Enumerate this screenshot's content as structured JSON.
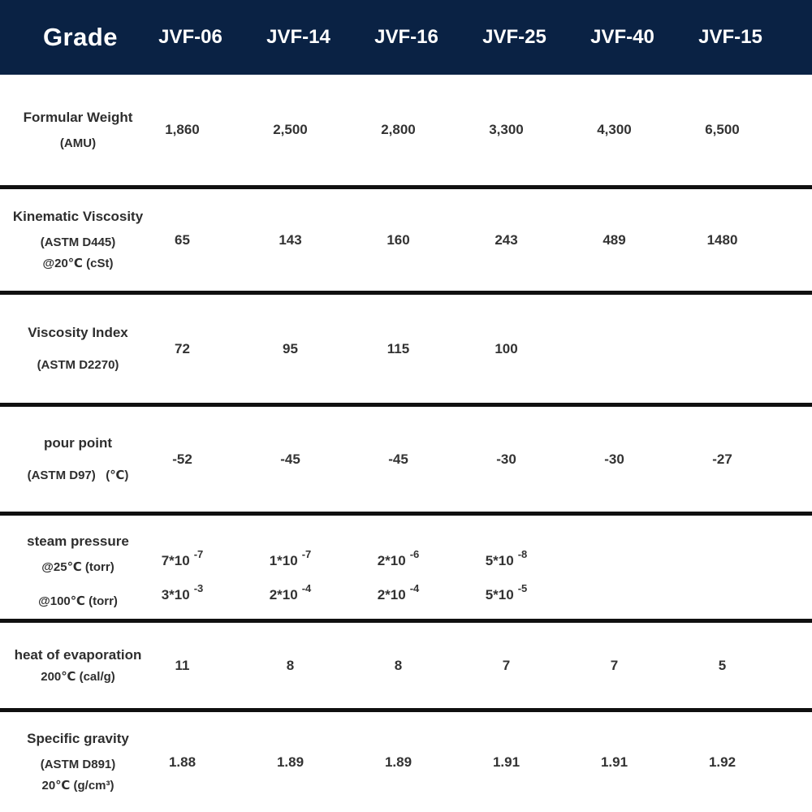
{
  "header": {
    "grade_label": "Grade",
    "columns": [
      "JVF-06",
      "JVF-14",
      "JVF-16",
      "JVF-25",
      "JVF-40",
      "JVF-15"
    ]
  },
  "colors": {
    "header_bg": "#0a2244",
    "header_text": "#ffffff",
    "divider": "#101010",
    "text": "#333333"
  },
  "rows": [
    {
      "label_lines": [
        "Formular Weight",
        "(AMU)"
      ],
      "values": [
        "1,860",
        "2,500",
        "2,800",
        "3,300",
        "4,300",
        "6,500"
      ]
    },
    {
      "label_lines": [
        "Kinematic Viscosity",
        "(ASTM D445)",
        "@20℃ (cSt)"
      ],
      "values": [
        "65",
        "143",
        "160",
        "243",
        "489",
        "1480"
      ]
    },
    {
      "label_lines": [
        "Viscosity Index",
        "(ASTM D2270)"
      ],
      "values": [
        "72",
        "95",
        "115",
        "100",
        "",
        ""
      ]
    },
    {
      "label_lines": [
        "pour point",
        "(ASTM D97)   (℃)"
      ],
      "values": [
        "-52",
        "-45",
        "-45",
        "-30",
        "-30",
        "-27"
      ]
    },
    {
      "label_lines": [
        "steam pressure",
        "@25℃ (torr)",
        "@100℃ (torr)"
      ],
      "sub_rows": [
        {
          "cells": [
            {
              "base": "7*10",
              "exp": "-7"
            },
            {
              "base": "1*10",
              "exp": "-7"
            },
            {
              "base": "2*10",
              "exp": "-6"
            },
            {
              "base": "5*10",
              "exp": "-8"
            },
            {
              "base": "",
              "exp": ""
            },
            {
              "base": "",
              "exp": ""
            }
          ]
        },
        {
          "cells": [
            {
              "base": "3*10",
              "exp": "-3"
            },
            {
              "base": "2*10",
              "exp": "-4"
            },
            {
              "base": "2*10",
              "exp": "-4"
            },
            {
              "base": "5*10",
              "exp": "-5"
            },
            {
              "base": "",
              "exp": ""
            },
            {
              "base": "",
              "exp": ""
            }
          ]
        }
      ]
    },
    {
      "label_lines": [
        "heat of evaporation",
        "200℃ (cal/g)"
      ],
      "values": [
        "11",
        "8",
        "8",
        "7",
        "7",
        "5"
      ]
    },
    {
      "label_lines": [
        "Specific gravity",
        "(ASTM D891)",
        "20℃ (g/cm³)"
      ],
      "values": [
        "1.88",
        "1.89",
        "1.89",
        "1.91",
        "1.91",
        "1.92"
      ]
    }
  ]
}
